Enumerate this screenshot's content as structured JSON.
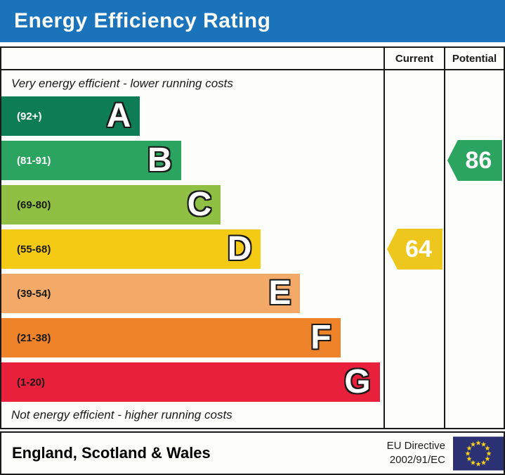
{
  "title": "Energy Efficiency Rating",
  "colors": {
    "titlebar_bg": "#1b74bb",
    "border": "#1a1a1a",
    "table_bg": "#fdfdfa",
    "eu_flag_bg": "#2b3173",
    "eu_star": "#f8d21a"
  },
  "columns": {
    "current": "Current",
    "potential": "Potential"
  },
  "top_note": "Very energy efficient - lower running costs",
  "bottom_note": "Not energy efficient - higher running costs",
  "footer": {
    "region": "England, Scotland & Wales",
    "directive_line1": "EU Directive",
    "directive_line2": "2002/91/EC",
    "eu_flag_icon": "eu-flag"
  },
  "chart_data": {
    "type": "bar",
    "title": "Energy Efficiency Rating",
    "categories": [
      "A",
      "B",
      "C",
      "D",
      "E",
      "F",
      "G"
    ],
    "bands": [
      {
        "letter": "A",
        "range_label": "(92+)",
        "range_min": 92,
        "range_max": 100,
        "color": "#0e7d55",
        "width_pct": 36.3,
        "range_text_color": "#ffffff"
      },
      {
        "letter": "B",
        "range_label": "(81-91)",
        "range_min": 81,
        "range_max": 91,
        "color": "#2aa45e",
        "width_pct": 47.0,
        "range_text_color": "#ffffff"
      },
      {
        "letter": "C",
        "range_label": "(69-80)",
        "range_min": 69,
        "range_max": 80,
        "color": "#8fc043",
        "width_pct": 57.4,
        "range_text_color": "#1a1a1a"
      },
      {
        "letter": "D",
        "range_label": "(55-68)",
        "range_min": 55,
        "range_max": 68,
        "color": "#f4ca15",
        "width_pct": 67.9,
        "range_text_color": "#1a1a1a"
      },
      {
        "letter": "E",
        "range_label": "(39-54)",
        "range_min": 39,
        "range_max": 54,
        "color": "#f3aa69",
        "width_pct": 78.2,
        "range_text_color": "#1a1a1a"
      },
      {
        "letter": "F",
        "range_label": "(21-38)",
        "range_min": 21,
        "range_max": 38,
        "color": "#ee8329",
        "width_pct": 88.7,
        "range_text_color": "#1a1a1a"
      },
      {
        "letter": "G",
        "range_label": "(1-20)",
        "range_min": 1,
        "range_max": 20,
        "color": "#e8203c",
        "width_pct": 99.0,
        "range_text_color": "#1a1a1a"
      }
    ],
    "current": {
      "label": "Current",
      "value": 64,
      "band": "D",
      "row_index": 3,
      "color": "#edc71d"
    },
    "potential": {
      "label": "Potential",
      "value": 86,
      "band": "B",
      "row_index": 1,
      "color": "#2aa45e"
    }
  }
}
